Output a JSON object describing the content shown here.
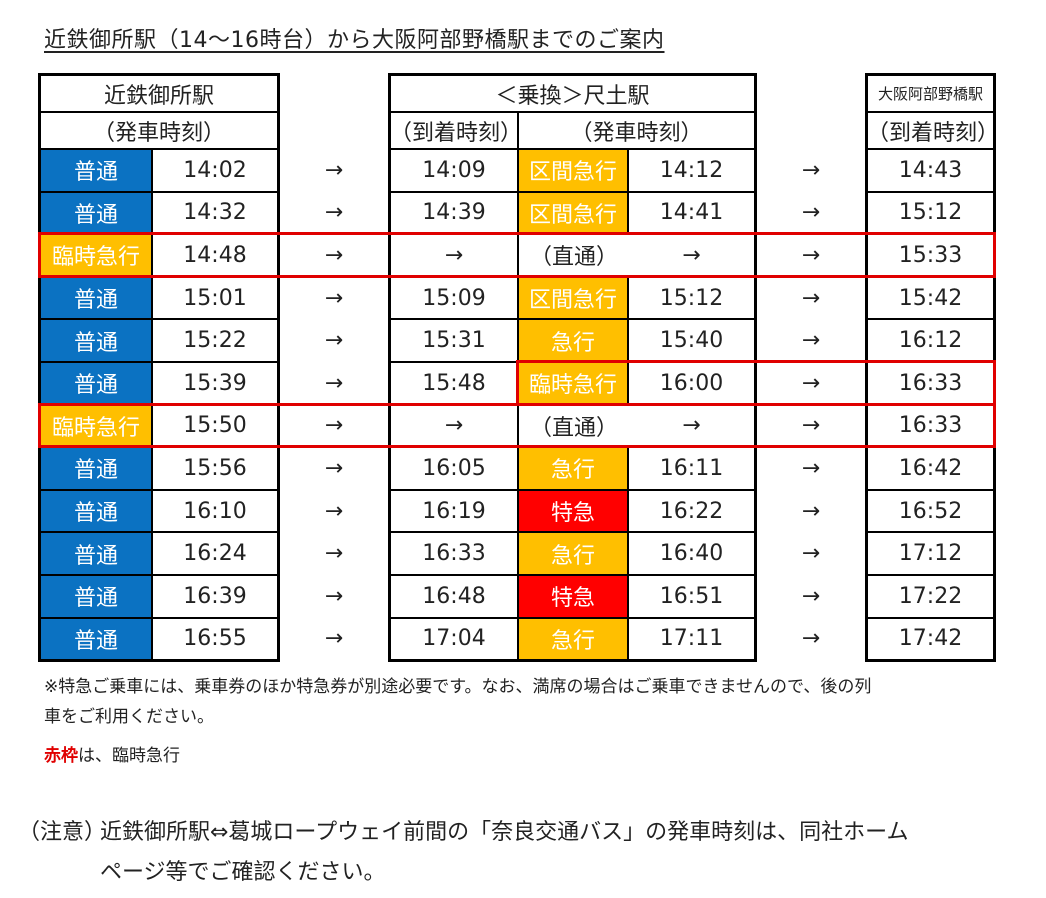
{
  "title": "近鉄御所駅（14～16時台）から大阪阿部野橋駅までのご案内",
  "headers": {
    "station1": "近鉄御所駅",
    "station1_sub": "（発車時刻）",
    "transfer": "＜乗換＞尺土駅",
    "transfer_arr": "（到着時刻）",
    "transfer_dep": "（発車時刻）",
    "station3": "大阪阿部野橋駅",
    "station3_sub": "（到着時刻）"
  },
  "arrow": "→",
  "through_label": "（直通）",
  "colors": {
    "blue": "#0b72c2",
    "orange": "#ffbf00",
    "red": "#ff0000",
    "frame": "#e00000"
  },
  "rows": [
    {
      "t1": "普通",
      "c1": "blue",
      "d1": "14:02",
      "a2": "14:09",
      "t2": "区間急行",
      "c2": "orange",
      "d2": "14:12",
      "a3": "14:43",
      "through": false
    },
    {
      "t1": "普通",
      "c1": "blue",
      "d1": "14:32",
      "a2": "14:39",
      "t2": "区間急行",
      "c2": "orange",
      "d2": "14:41",
      "a3": "15:12",
      "through": false
    },
    {
      "t1": "臨時急行",
      "c1": "orange",
      "d1": "14:48",
      "a2": "",
      "t2": "",
      "c2": "",
      "d2": "",
      "a3": "15:33",
      "through": true
    },
    {
      "t1": "普通",
      "c1": "blue",
      "d1": "15:01",
      "a2": "15:09",
      "t2": "区間急行",
      "c2": "orange",
      "d2": "15:12",
      "a3": "15:42",
      "through": false
    },
    {
      "t1": "普通",
      "c1": "blue",
      "d1": "15:22",
      "a2": "15:31",
      "t2": "急行",
      "c2": "orange",
      "d2": "15:40",
      "a3": "16:12",
      "through": false
    },
    {
      "t1": "普通",
      "c1": "blue",
      "d1": "15:39",
      "a2": "15:48",
      "t2": "臨時急行",
      "c2": "orange",
      "d2": "16:00",
      "a3": "16:33",
      "through": false
    },
    {
      "t1": "臨時急行",
      "c1": "orange",
      "d1": "15:50",
      "a2": "",
      "t2": "",
      "c2": "",
      "d2": "",
      "a3": "16:33",
      "through": true
    },
    {
      "t1": "普通",
      "c1": "blue",
      "d1": "15:56",
      "a2": "16:05",
      "t2": "急行",
      "c2": "orange",
      "d2": "16:11",
      "a3": "16:42",
      "through": false
    },
    {
      "t1": "普通",
      "c1": "blue",
      "d1": "16:10",
      "a2": "16:19",
      "t2": "特急",
      "c2": "red",
      "d2": "16:22",
      "a3": "16:52",
      "through": false
    },
    {
      "t1": "普通",
      "c1": "blue",
      "d1": "16:24",
      "a2": "16:33",
      "t2": "急行",
      "c2": "orange",
      "d2": "16:40",
      "a3": "17:12",
      "through": false
    },
    {
      "t1": "普通",
      "c1": "blue",
      "d1": "16:39",
      "a2": "16:48",
      "t2": "特急",
      "c2": "red",
      "d2": "16:51",
      "a3": "17:22",
      "through": false
    },
    {
      "t1": "普通",
      "c1": "blue",
      "d1": "16:55",
      "a2": "17:04",
      "t2": "急行",
      "c2": "orange",
      "d2": "17:11",
      "a3": "17:42",
      "through": false
    }
  ],
  "notes": {
    "line1": "※特急ご乗車には、乗車券のほか特急券が別途必要です。なお、満席の場合はご乗車できませんので、後の列",
    "line2": "車をご利用ください。",
    "legend_red": "赤枠",
    "legend_rest": "は、臨時急行"
  },
  "caution": {
    "label": "（注意）",
    "line1": "近鉄御所駅⇔葛城ロープウェイ前間の「奈良交通バス」の発車時刻は、同社ホーム",
    "line2": "ページ等でご確認ください。"
  }
}
